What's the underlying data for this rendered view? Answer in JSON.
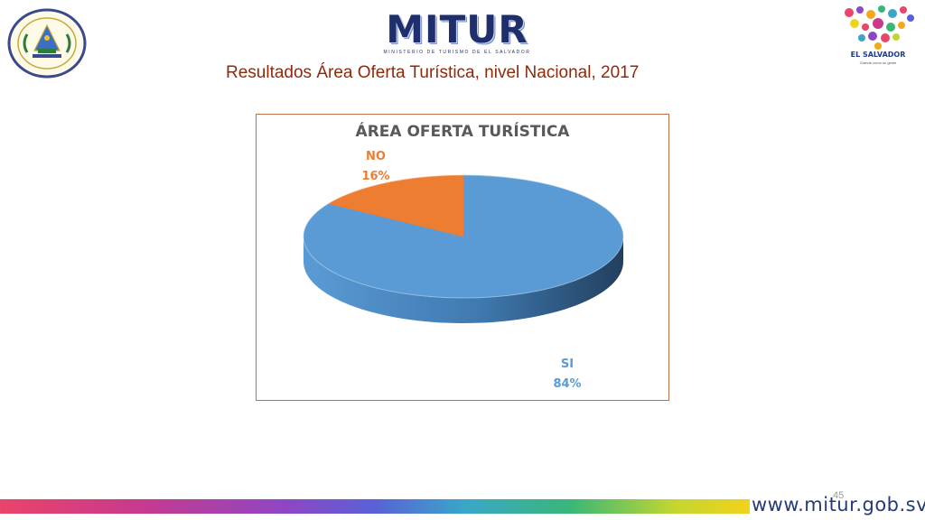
{
  "header": {
    "logo_text": "MITUR",
    "logo_subtext": "MINISTERIO DE TURISMO DE EL SALVADOR",
    "slide_title": "Resultados Área Oferta Turística, nivel Nacional, 2017",
    "brand_name": "EL SALVADOR",
    "brand_tagline": "Grande como su gente"
  },
  "chart_data": {
    "type": "pie",
    "title": "ÁREA OFERTA TURÍSTICA",
    "categories": [
      "SI",
      "NO"
    ],
    "values": [
      84,
      16
    ],
    "value_labels": [
      "84%",
      "16%"
    ],
    "colors": [
      "#5b9bd5",
      "#ed7d31"
    ],
    "style": "3d",
    "legend": "none"
  },
  "footer": {
    "page_number": "45",
    "website": "www.mitur.gob.sv"
  },
  "colors": {
    "title": "#8e2a0c",
    "logo_blue": "#1f2f6b",
    "frame_border": "#c0714a"
  }
}
